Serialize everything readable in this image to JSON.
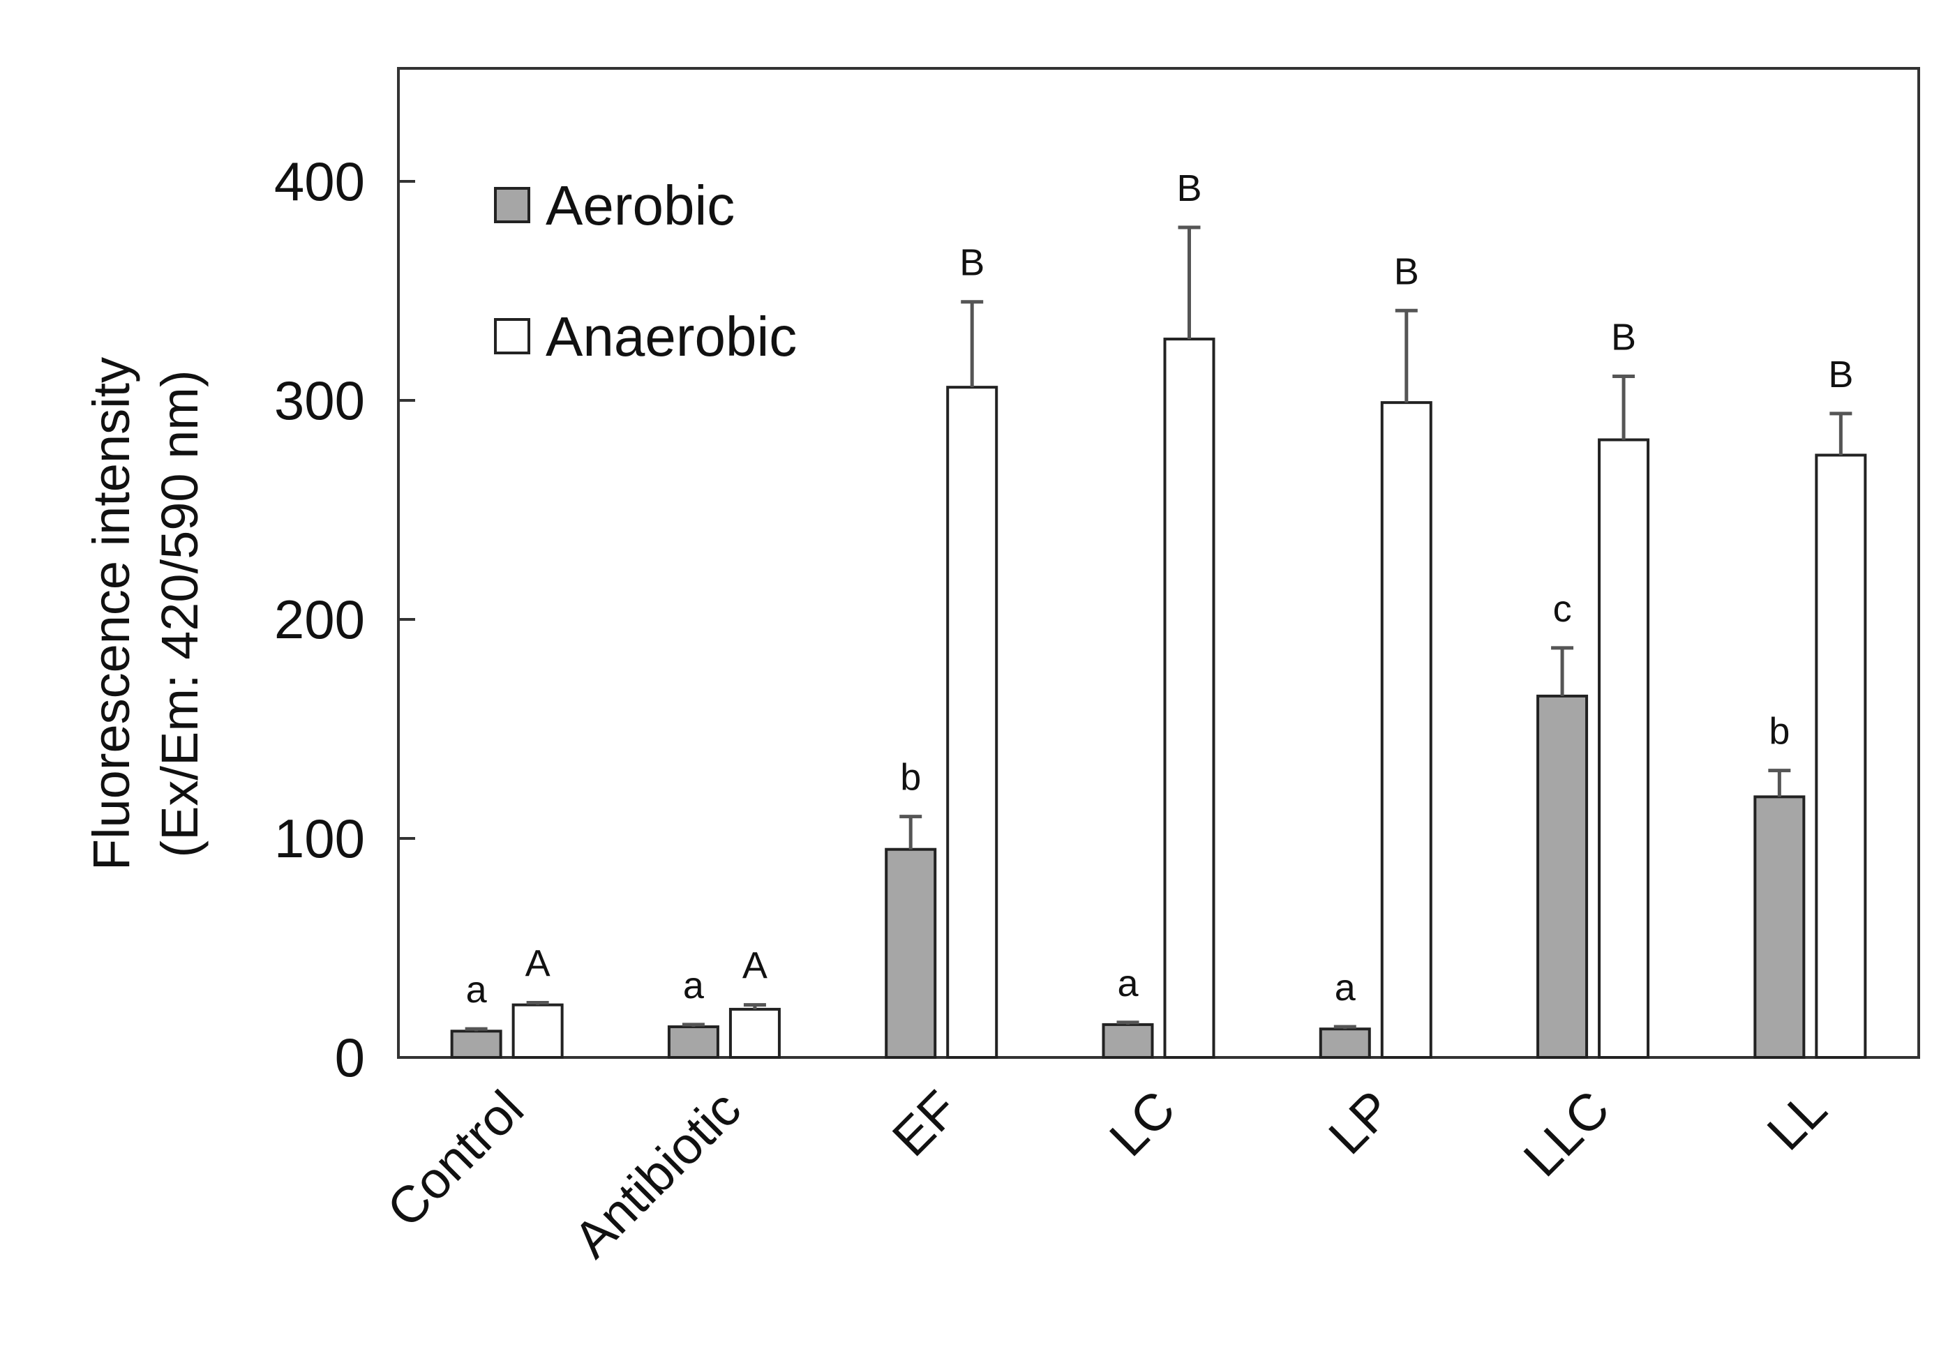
{
  "chart_data": {
    "type": "bar",
    "title": "",
    "xlabel": "",
    "ylabel": "Fluorescence intensity",
    "ylabel_line2": "(Ex/Em: 420/590 nm)",
    "ylim": [
      0,
      450
    ],
    "yticks": [
      0,
      100,
      200,
      300,
      400
    ],
    "grid": false,
    "legend_position": "top-left",
    "categories": [
      "Control",
      "Antibiotic",
      "EF",
      "LC",
      "LP",
      "LLC",
      "LL"
    ],
    "series": [
      {
        "name": "Aerobic",
        "color": "#a6a6a6",
        "values": [
          12,
          14,
          95,
          15,
          13,
          165,
          119
        ],
        "errors": [
          1,
          1,
          15,
          1,
          1,
          22,
          12
        ],
        "labels": [
          "a",
          "a",
          "b",
          "a",
          "a",
          "c",
          "b"
        ]
      },
      {
        "name": "Anaerobic",
        "color": "#ffffff",
        "values": [
          24,
          22,
          306,
          328,
          299,
          282,
          275
        ],
        "errors": [
          1,
          2,
          39,
          51,
          42,
          29,
          19
        ],
        "labels": [
          "A",
          "A",
          "B",
          "B",
          "B",
          "B",
          "B"
        ]
      }
    ]
  }
}
